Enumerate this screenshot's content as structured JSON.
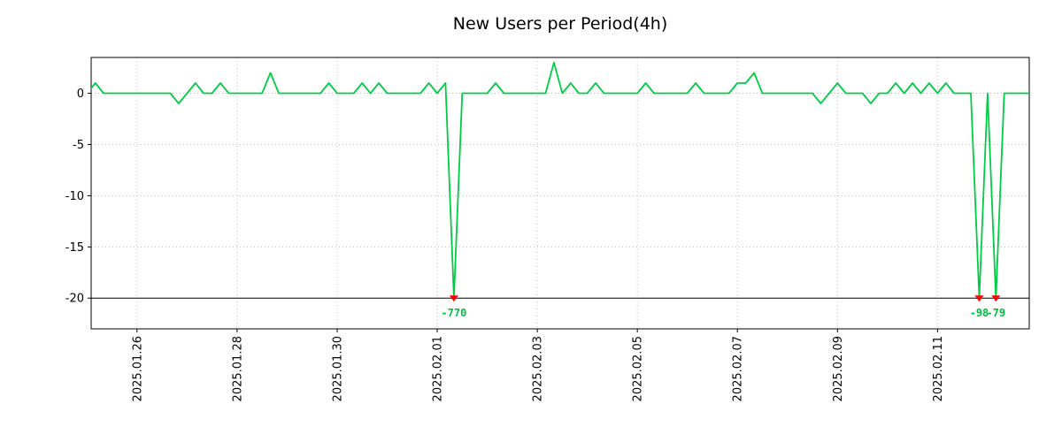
{
  "title": "New Users per Period(4h)",
  "colors": {
    "line": "#00cc44",
    "marker": "#ff0000",
    "annotation": "#00c040",
    "grid": "#b0b0b0",
    "axis": "#000000",
    "background": "#ffffff"
  },
  "chart_data": {
    "type": "line",
    "title": "New Users per Period(4h)",
    "x_start": "2025-01-25 00:00",
    "interval_hours": 4,
    "xlim": [
      0.5,
      113
    ],
    "ylim": [
      -23,
      3.5
    ],
    "clip_min": -20,
    "baseline": -20,
    "grid": true,
    "values": [
      0,
      1,
      0,
      0,
      0,
      0,
      0,
      0,
      0,
      0,
      0,
      -1,
      0,
      1,
      0,
      0,
      1,
      0,
      0,
      0,
      0,
      0,
      2,
      0,
      0,
      0,
      0,
      0,
      0,
      1,
      0,
      0,
      0,
      1,
      0,
      1,
      0,
      0,
      0,
      0,
      0,
      1,
      0,
      1,
      -770,
      0,
      0,
      0,
      0,
      1,
      0,
      0,
      0,
      0,
      0,
      0,
      3,
      0,
      1,
      0,
      0,
      1,
      0,
      0,
      0,
      0,
      0,
      1,
      0,
      0,
      0,
      0,
      0,
      1,
      0,
      0,
      0,
      0,
      1,
      1,
      2,
      0,
      0,
      0,
      0,
      0,
      0,
      0,
      -1,
      0,
      1,
      0,
      0,
      0,
      -1,
      0,
      0,
      1,
      0,
      1,
      0,
      1,
      0,
      1,
      0,
      0,
      0,
      -98,
      0,
      -79,
      0,
      0,
      0,
      0
    ],
    "yticks": [
      {
        "v": 0,
        "label": "0"
      },
      {
        "v": -5,
        "label": "-5"
      },
      {
        "v": -10,
        "label": "-10"
      },
      {
        "v": -15,
        "label": "-15"
      },
      {
        "v": -20,
        "label": "-20"
      }
    ],
    "xticks": [
      {
        "i": 6,
        "label": "2025.01.26"
      },
      {
        "i": 18,
        "label": "2025.01.28"
      },
      {
        "i": 30,
        "label": "2025.01.30"
      },
      {
        "i": 42,
        "label": "2025.02.01"
      },
      {
        "i": 54,
        "label": "2025.02.03"
      },
      {
        "i": 66,
        "label": "2025.02.05"
      },
      {
        "i": 78,
        "label": "2025.02.07"
      },
      {
        "i": 90,
        "label": "2025.02.09"
      },
      {
        "i": 102,
        "label": "2025.02.11"
      }
    ],
    "annotations": [
      {
        "i": 44,
        "value": -770,
        "label": "-770"
      },
      {
        "i": 107,
        "value": -98,
        "label": "-98"
      },
      {
        "i": 109,
        "value": -79,
        "label": "-79"
      }
    ]
  }
}
